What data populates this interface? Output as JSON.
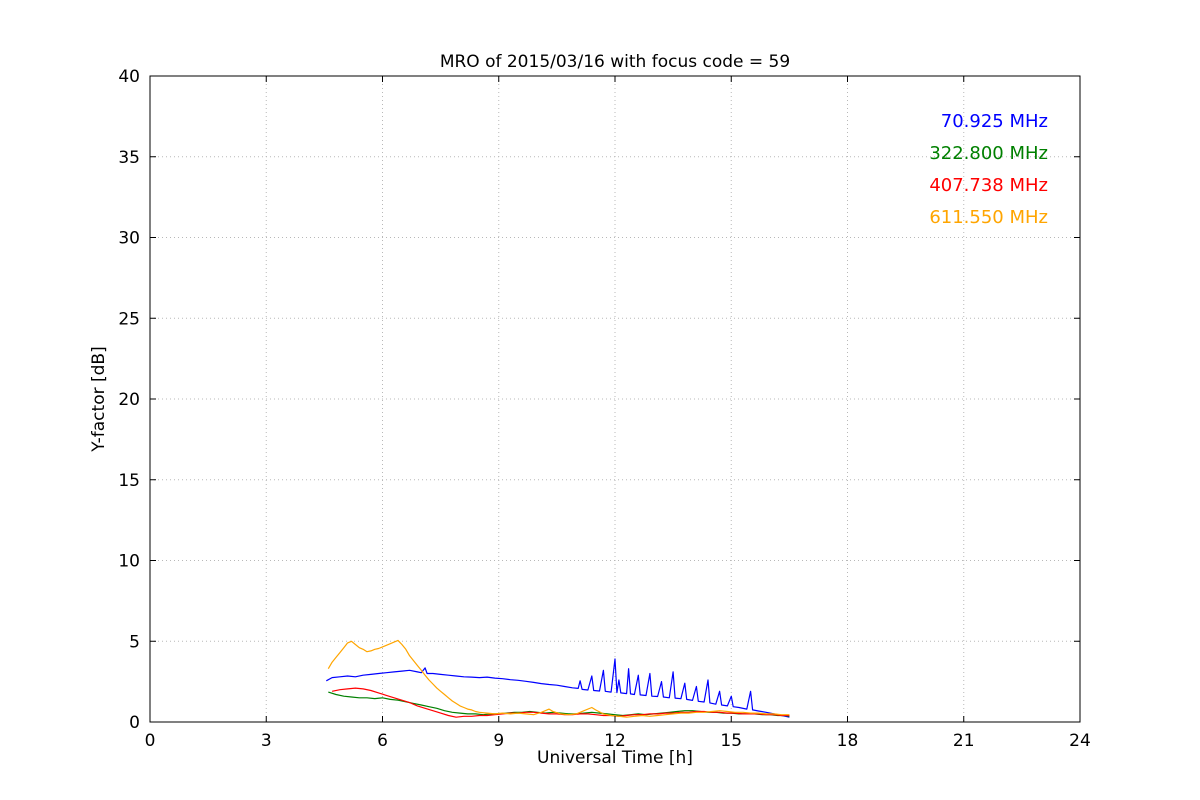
{
  "figure": {
    "background": "#ffffff",
    "frame_color": "#000000",
    "grid_color": "#b8b8b8",
    "grid_style": "dotted"
  },
  "chart_data": {
    "type": "line",
    "title": "MRO of 2015/03/16 with focus code = 59",
    "xlabel": "Universal Time [h]",
    "ylabel": "Y-factor [dB]",
    "xlim": [
      0,
      24
    ],
    "ylim": [
      0,
      40
    ],
    "xticks": [
      0,
      3,
      6,
      9,
      12,
      15,
      18,
      21,
      24
    ],
    "yticks": [
      0,
      5,
      10,
      15,
      20,
      25,
      30,
      35,
      40
    ],
    "grid": "dotted",
    "legend_position": "upper-right",
    "series": [
      {
        "name": "70.925 MHz",
        "color": "#0000ff",
        "points": [
          [
            4.55,
            2.55
          ],
          [
            4.7,
            2.75
          ],
          [
            4.9,
            2.8
          ],
          [
            5.1,
            2.85
          ],
          [
            5.3,
            2.8
          ],
          [
            5.5,
            2.9
          ],
          [
            5.7,
            2.95
          ],
          [
            5.9,
            3.0
          ],
          [
            6.1,
            3.05
          ],
          [
            6.3,
            3.1
          ],
          [
            6.5,
            3.15
          ],
          [
            6.7,
            3.2
          ],
          [
            6.9,
            3.1
          ],
          [
            7.0,
            3.05
          ],
          [
            7.1,
            3.35
          ],
          [
            7.15,
            3.0
          ],
          [
            7.3,
            3.0
          ],
          [
            7.5,
            2.95
          ],
          [
            7.7,
            2.9
          ],
          [
            7.9,
            2.85
          ],
          [
            8.1,
            2.8
          ],
          [
            8.3,
            2.78
          ],
          [
            8.5,
            2.75
          ],
          [
            8.7,
            2.78
          ],
          [
            8.9,
            2.72
          ],
          [
            9.1,
            2.68
          ],
          [
            9.3,
            2.62
          ],
          [
            9.5,
            2.58
          ],
          [
            9.7,
            2.52
          ],
          [
            9.9,
            2.45
          ],
          [
            10.1,
            2.38
          ],
          [
            10.3,
            2.32
          ],
          [
            10.5,
            2.28
          ],
          [
            10.7,
            2.2
          ],
          [
            10.9,
            2.12
          ],
          [
            11.05,
            2.08
          ],
          [
            11.1,
            2.55
          ],
          [
            11.15,
            2.02
          ],
          [
            11.3,
            1.98
          ],
          [
            11.4,
            2.85
          ],
          [
            11.45,
            1.95
          ],
          [
            11.6,
            1.92
          ],
          [
            11.7,
            3.2
          ],
          [
            11.75,
            1.9
          ],
          [
            11.9,
            1.85
          ],
          [
            12.0,
            3.9
          ],
          [
            12.05,
            1.82
          ],
          [
            12.1,
            2.6
          ],
          [
            12.15,
            1.8
          ],
          [
            12.3,
            1.76
          ],
          [
            12.35,
            3.3
          ],
          [
            12.4,
            1.74
          ],
          [
            12.5,
            1.7
          ],
          [
            12.6,
            2.9
          ],
          [
            12.65,
            1.68
          ],
          [
            12.8,
            1.64
          ],
          [
            12.9,
            3.0
          ],
          [
            12.95,
            1.6
          ],
          [
            13.1,
            1.58
          ],
          [
            13.2,
            2.5
          ],
          [
            13.25,
            1.55
          ],
          [
            13.4,
            1.5
          ],
          [
            13.5,
            3.1
          ],
          [
            13.55,
            1.48
          ],
          [
            13.7,
            1.44
          ],
          [
            13.8,
            2.4
          ],
          [
            13.85,
            1.4
          ],
          [
            14.0,
            1.34
          ],
          [
            14.1,
            2.2
          ],
          [
            14.15,
            1.28
          ],
          [
            14.3,
            1.24
          ],
          [
            14.4,
            2.6
          ],
          [
            14.45,
            1.18
          ],
          [
            14.6,
            1.1
          ],
          [
            14.7,
            1.9
          ],
          [
            14.75,
            1.05
          ],
          [
            14.9,
            1.0
          ],
          [
            15.0,
            1.6
          ],
          [
            15.05,
            0.95
          ],
          [
            15.2,
            0.9
          ],
          [
            15.4,
            0.8
          ],
          [
            15.5,
            1.9
          ],
          [
            15.55,
            0.75
          ],
          [
            15.7,
            0.68
          ],
          [
            15.9,
            0.6
          ],
          [
            16.0,
            0.55
          ],
          [
            16.1,
            0.5
          ],
          [
            16.2,
            0.45
          ],
          [
            16.3,
            0.4
          ],
          [
            16.4,
            0.35
          ],
          [
            16.5,
            0.3
          ]
        ]
      },
      {
        "name": "322.800 MHz",
        "color": "#008000",
        "points": [
          [
            4.6,
            1.85
          ],
          [
            4.8,
            1.7
          ],
          [
            5.0,
            1.6
          ],
          [
            5.2,
            1.55
          ],
          [
            5.4,
            1.5
          ],
          [
            5.6,
            1.5
          ],
          [
            5.8,
            1.45
          ],
          [
            6.0,
            1.5
          ],
          [
            6.2,
            1.4
          ],
          [
            6.4,
            1.35
          ],
          [
            6.6,
            1.25
          ],
          [
            6.8,
            1.15
          ],
          [
            7.0,
            1.05
          ],
          [
            7.2,
            0.95
          ],
          [
            7.4,
            0.85
          ],
          [
            7.6,
            0.7
          ],
          [
            7.8,
            0.6
          ],
          [
            8.0,
            0.55
          ],
          [
            8.2,
            0.5
          ],
          [
            8.4,
            0.5
          ],
          [
            8.6,
            0.45
          ],
          [
            8.8,
            0.5
          ],
          [
            9.0,
            0.5
          ],
          [
            9.2,
            0.55
          ],
          [
            9.4,
            0.6
          ],
          [
            9.6,
            0.6
          ],
          [
            9.8,
            0.65
          ],
          [
            10.0,
            0.6
          ],
          [
            10.2,
            0.55
          ],
          [
            10.4,
            0.6
          ],
          [
            10.6,
            0.55
          ],
          [
            10.8,
            0.5
          ],
          [
            11.0,
            0.5
          ],
          [
            11.2,
            0.55
          ],
          [
            11.4,
            0.6
          ],
          [
            11.6,
            0.55
          ],
          [
            11.8,
            0.5
          ],
          [
            12.0,
            0.45
          ],
          [
            12.2,
            0.4
          ],
          [
            12.4,
            0.45
          ],
          [
            12.6,
            0.5
          ],
          [
            12.8,
            0.45
          ],
          [
            13.0,
            0.5
          ],
          [
            13.2,
            0.55
          ],
          [
            13.4,
            0.6
          ],
          [
            13.6,
            0.65
          ],
          [
            13.8,
            0.7
          ],
          [
            14.0,
            0.7
          ],
          [
            14.2,
            0.65
          ],
          [
            14.4,
            0.6
          ],
          [
            14.6,
            0.6
          ],
          [
            14.8,
            0.55
          ],
          [
            15.0,
            0.55
          ],
          [
            15.2,
            0.5
          ],
          [
            15.4,
            0.5
          ],
          [
            15.6,
            0.5
          ],
          [
            15.8,
            0.45
          ],
          [
            16.0,
            0.45
          ],
          [
            16.2,
            0.4
          ],
          [
            16.4,
            0.4
          ],
          [
            16.5,
            0.35
          ]
        ]
      },
      {
        "name": "407.738 MHz",
        "color": "#ff0000",
        "points": [
          [
            4.7,
            1.9
          ],
          [
            4.9,
            2.0
          ],
          [
            5.1,
            2.05
          ],
          [
            5.3,
            2.1
          ],
          [
            5.5,
            2.05
          ],
          [
            5.7,
            1.95
          ],
          [
            5.9,
            1.8
          ],
          [
            6.1,
            1.65
          ],
          [
            6.3,
            1.5
          ],
          [
            6.5,
            1.35
          ],
          [
            6.7,
            1.2
          ],
          [
            6.9,
            1.0
          ],
          [
            7.1,
            0.85
          ],
          [
            7.3,
            0.7
          ],
          [
            7.5,
            0.55
          ],
          [
            7.7,
            0.4
          ],
          [
            7.9,
            0.3
          ],
          [
            8.1,
            0.35
          ],
          [
            8.3,
            0.35
          ],
          [
            8.5,
            0.4
          ],
          [
            8.7,
            0.4
          ],
          [
            8.9,
            0.45
          ],
          [
            9.1,
            0.5
          ],
          [
            9.3,
            0.55
          ],
          [
            9.5,
            0.55
          ],
          [
            9.7,
            0.6
          ],
          [
            9.9,
            0.6
          ],
          [
            10.1,
            0.55
          ],
          [
            10.3,
            0.5
          ],
          [
            10.5,
            0.5
          ],
          [
            10.7,
            0.45
          ],
          [
            10.9,
            0.45
          ],
          [
            11.1,
            0.5
          ],
          [
            11.3,
            0.5
          ],
          [
            11.5,
            0.45
          ],
          [
            11.7,
            0.4
          ],
          [
            11.9,
            0.4
          ],
          [
            12.1,
            0.35
          ],
          [
            12.3,
            0.4
          ],
          [
            12.5,
            0.45
          ],
          [
            12.7,
            0.45
          ],
          [
            12.9,
            0.5
          ],
          [
            13.1,
            0.5
          ],
          [
            13.3,
            0.55
          ],
          [
            13.5,
            0.55
          ],
          [
            13.7,
            0.6
          ],
          [
            13.9,
            0.6
          ],
          [
            14.1,
            0.65
          ],
          [
            14.3,
            0.65
          ],
          [
            14.5,
            0.6
          ],
          [
            14.7,
            0.6
          ],
          [
            14.9,
            0.55
          ],
          [
            15.1,
            0.55
          ],
          [
            15.3,
            0.5
          ],
          [
            15.5,
            0.5
          ],
          [
            15.7,
            0.5
          ],
          [
            15.9,
            0.45
          ],
          [
            16.1,
            0.45
          ],
          [
            16.3,
            0.4
          ],
          [
            16.5,
            0.4
          ]
        ]
      },
      {
        "name": "611.550 MHz",
        "color": "#ffa500",
        "points": [
          [
            4.6,
            3.3
          ],
          [
            4.7,
            3.7
          ],
          [
            4.8,
            4.0
          ],
          [
            4.9,
            4.3
          ],
          [
            5.0,
            4.6
          ],
          [
            5.1,
            4.9
          ],
          [
            5.2,
            5.0
          ],
          [
            5.3,
            4.8
          ],
          [
            5.4,
            4.6
          ],
          [
            5.5,
            4.5
          ],
          [
            5.6,
            4.35
          ],
          [
            5.7,
            4.4
          ],
          [
            5.8,
            4.5
          ],
          [
            5.9,
            4.55
          ],
          [
            6.0,
            4.65
          ],
          [
            6.1,
            4.75
          ],
          [
            6.2,
            4.85
          ],
          [
            6.3,
            4.95
          ],
          [
            6.4,
            5.05
          ],
          [
            6.5,
            4.8
          ],
          [
            6.6,
            4.5
          ],
          [
            6.7,
            4.1
          ],
          [
            6.8,
            3.8
          ],
          [
            6.9,
            3.5
          ],
          [
            7.0,
            3.2
          ],
          [
            7.1,
            2.9
          ],
          [
            7.2,
            2.6
          ],
          [
            7.3,
            2.35
          ],
          [
            7.4,
            2.1
          ],
          [
            7.5,
            1.9
          ],
          [
            7.6,
            1.7
          ],
          [
            7.7,
            1.5
          ],
          [
            7.8,
            1.3
          ],
          [
            7.9,
            1.15
          ],
          [
            8.0,
            1.0
          ],
          [
            8.1,
            0.9
          ],
          [
            8.2,
            0.8
          ],
          [
            8.3,
            0.75
          ],
          [
            8.4,
            0.65
          ],
          [
            8.5,
            0.6
          ],
          [
            8.7,
            0.55
          ],
          [
            8.9,
            0.5
          ],
          [
            9.1,
            0.55
          ],
          [
            9.3,
            0.5
          ],
          [
            9.5,
            0.55
          ],
          [
            9.7,
            0.5
          ],
          [
            9.9,
            0.45
          ],
          [
            10.1,
            0.6
          ],
          [
            10.3,
            0.8
          ],
          [
            10.4,
            0.65
          ],
          [
            10.6,
            0.5
          ],
          [
            10.8,
            0.45
          ],
          [
            11.0,
            0.5
          ],
          [
            11.2,
            0.7
          ],
          [
            11.4,
            0.9
          ],
          [
            11.5,
            0.75
          ],
          [
            11.7,
            0.5
          ],
          [
            11.9,
            0.4
          ],
          [
            12.1,
            0.35
          ],
          [
            12.3,
            0.3
          ],
          [
            12.5,
            0.35
          ],
          [
            12.7,
            0.4
          ],
          [
            12.9,
            0.35
          ],
          [
            13.1,
            0.4
          ],
          [
            13.3,
            0.45
          ],
          [
            13.5,
            0.5
          ],
          [
            13.7,
            0.55
          ],
          [
            13.9,
            0.55
          ],
          [
            14.1,
            0.6
          ],
          [
            14.3,
            0.6
          ],
          [
            14.5,
            0.65
          ],
          [
            14.7,
            0.7
          ],
          [
            14.9,
            0.65
          ],
          [
            15.1,
            0.6
          ],
          [
            15.3,
            0.6
          ],
          [
            15.5,
            0.55
          ],
          [
            15.7,
            0.55
          ],
          [
            15.9,
            0.5
          ],
          [
            16.1,
            0.5
          ],
          [
            16.3,
            0.45
          ],
          [
            16.5,
            0.45
          ]
        ]
      }
    ]
  }
}
